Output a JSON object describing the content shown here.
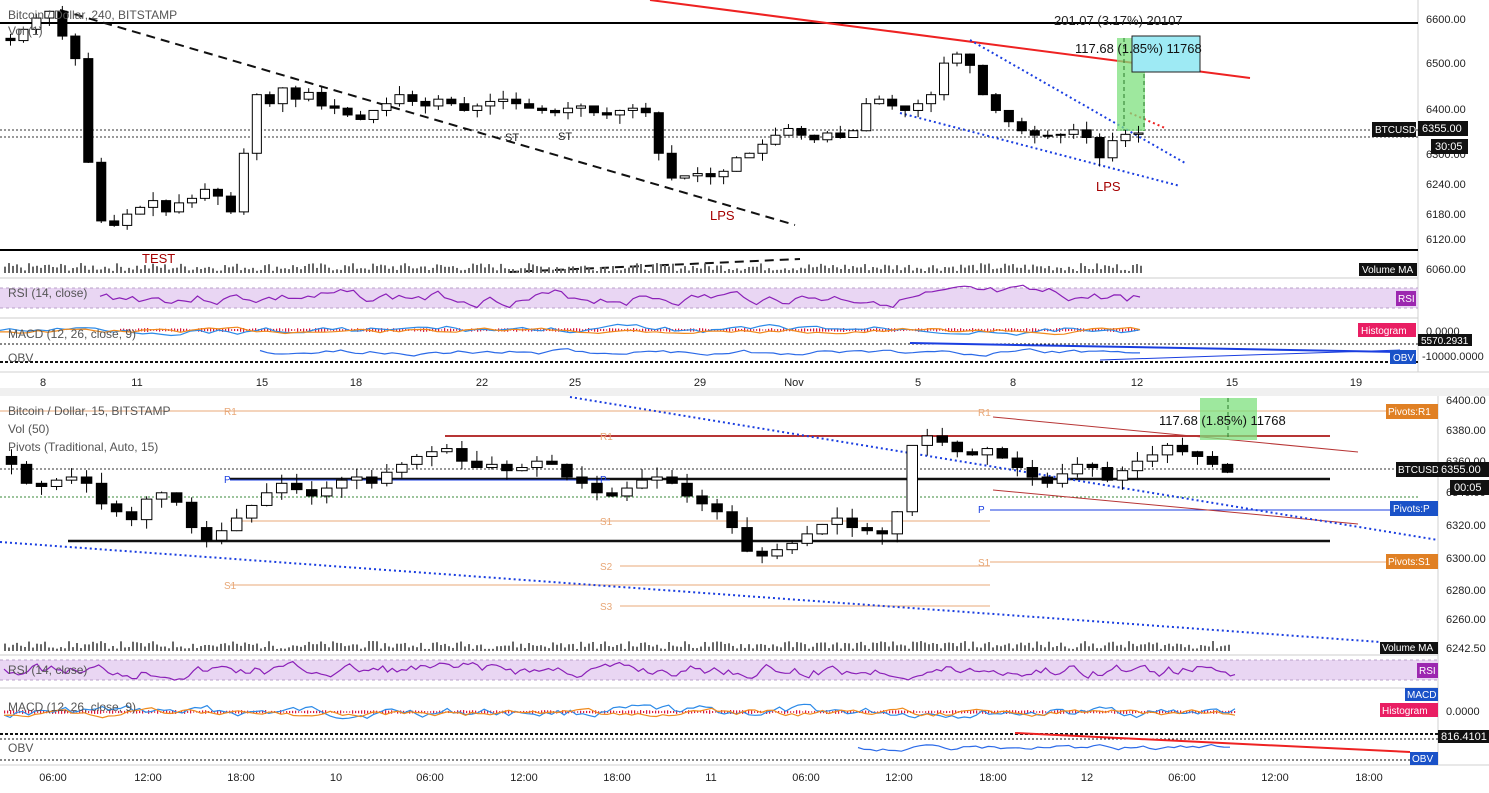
{
  "top": {
    "title": "Bitcoin / Dollar, 240, BITSTAMP",
    "vol_label": "Vol (1)",
    "volume_ma_badge": "Volume MA",
    "price_badge_symbol": "BTCUSD",
    "price_badge_value": "6355.00",
    "countdown": "30:05",
    "y_ticks": [
      "6600.00",
      "6500.00",
      "6400.00",
      "6300.00",
      "6240.00",
      "6180.00",
      "6120.00",
      "6060.00"
    ],
    "x_ticks": [
      "8",
      "11",
      "15",
      "18",
      "22",
      "25",
      "29",
      "Nov",
      "5",
      "8",
      "12",
      "15",
      "19"
    ],
    "annotations": {
      "range_label": "201.07 (3.17%) 20107",
      "measure_label": "117.68 (1.85%) 11768",
      "test": "TEST",
      "lps_1": "LPS",
      "lps_2": "LPS",
      "st_1": "ST",
      "st_2": "ST"
    },
    "rsi": {
      "label": "RSI (14, close)",
      "badge": "RSI"
    },
    "macd": {
      "label": "MACD (12, 26, close, 9)",
      "badge": "Histogram",
      "value": "0.0000"
    },
    "obv": {
      "label": "OBV",
      "badge": "OBV",
      "value": "-10000.0000",
      "value2": "5570.2931"
    }
  },
  "bottom": {
    "title": "Bitcoin / Dollar, 15, BITSTAMP",
    "vol_label": "Vol (50)",
    "pivots_label": "Pivots (Traditional, Auto, 15)",
    "volume_ma_badge": "Volume MA",
    "price_badge_symbol": "BTCUSD",
    "price_badge_value": "6355.00",
    "countdown": "00:05",
    "pivot_badges": {
      "r1": "Pivots:R1",
      "p": "Pivots:P",
      "s1": "Pivots:S1"
    },
    "pivot_levels": {
      "r1": "R1",
      "p": "P",
      "s1": "S1",
      "s2": "S2",
      "s3": "S3"
    },
    "y_ticks": [
      "6400.00",
      "6380.00",
      "6360.00",
      "6340.00",
      "6320.00",
      "6300.00",
      "6280.00",
      "6260.00",
      "6242.50"
    ],
    "x_ticks": [
      "06:00",
      "12:00",
      "18:00",
      "10",
      "06:00",
      "12:00",
      "18:00",
      "11",
      "06:00",
      "12:00",
      "18:00",
      "12",
      "06:00",
      "12:00",
      "18:00"
    ],
    "measure_label": "117.68 (1.85%) 11768",
    "rsi": {
      "label": "RSI (14, close)",
      "badge": "RSI"
    },
    "macd": {
      "label": "MACD (12, 26, close, 9)",
      "badge": "Histogram",
      "badge2": "MACD",
      "value": "0.0000"
    },
    "obv": {
      "label": "OBV",
      "badge": "OBV",
      "value": "816.4101"
    }
  },
  "colors": {
    "up_candle": "#ffffff",
    "down_candle": "#000000",
    "trendline_red": "#ee2222",
    "trendline_blue": "#1a3ee0",
    "rsi_line": "#8b20b8",
    "rsi_band": "#e9d6f3",
    "macd_blue": "#2b8ae8",
    "macd_orange": "#f08a1c",
    "histogram_red": "#d9173c",
    "pivot_orange": "#e8a878",
    "badge_pink": "#e91e63",
    "badge_blue": "#1a52c8",
    "badge_orange": "#e08024",
    "measure_green": "#7de07d",
    "measure_cyan": "#9eeaf4"
  },
  "chart_data": [
    {
      "type": "candlestick",
      "title": "Bitcoin / Dollar, 240, BITSTAMP",
      "ylim": [
        6040,
        6650
      ],
      "last_price": 6355.0,
      "closes": [
        6560,
        6585,
        6610,
        6625,
        6570,
        6520,
        6290,
        6160,
        6150,
        6175,
        6190,
        6205,
        6180,
        6200,
        6210,
        6230,
        6215,
        6180,
        6310,
        6440,
        6420,
        6455,
        6430,
        6445,
        6415,
        6410,
        6395,
        6385,
        6405,
        6420,
        6440,
        6425,
        6415,
        6430,
        6420,
        6405,
        6415,
        6425,
        6430,
        6420,
        6410,
        6405,
        6400,
        6410,
        6415,
        6400,
        6395,
        6405,
        6410,
        6400,
        6310,
        6255,
        6260,
        6265,
        6258,
        6270,
        6300,
        6310,
        6330,
        6350,
        6365,
        6350,
        6340,
        6355,
        6345,
        6360,
        6420,
        6430,
        6415,
        6405,
        6420,
        6440,
        6510,
        6530,
        6505,
        6440,
        6405,
        6380,
        6360,
        6350,
        6350,
        6352,
        6362,
        6345,
        6300,
        6338,
        6352,
        6355
      ]
    },
    {
      "type": "candlestick",
      "title": "Bitcoin / Dollar, 15, BITSTAMP",
      "ylim": [
        6242.5,
        6402
      ],
      "last_price": 6355.0,
      "pivots": {
        "R1": 6385,
        "P": 6333,
        "S1": 6300,
        "S2": 6296,
        "S3": 6281
      },
      "closes": [
        6360,
        6348,
        6346,
        6350,
        6352,
        6348,
        6335,
        6330,
        6325,
        6338,
        6342,
        6336,
        6320,
        6312,
        6318,
        6326,
        6334,
        6342,
        6348,
        6344,
        6340,
        6345,
        6350,
        6352,
        6348,
        6355,
        6360,
        6365,
        6368,
        6370,
        6362,
        6358,
        6360,
        6356,
        6358,
        6362,
        6360,
        6352,
        6348,
        6342,
        6340,
        6345,
        6350,
        6352,
        6348,
        6340,
        6335,
        6330,
        6320,
        6305,
        6302,
        6306,
        6310,
        6316,
        6322,
        6326,
        6320,
        6318,
        6316,
        6330,
        6372,
        6378,
        6374,
        6368,
        6366,
        6370,
        6364,
        6358,
        6352,
        6348,
        6354,
        6360,
        6358,
        6350,
        6356,
        6362,
        6366,
        6372,
        6368,
        6365,
        6360,
        6355
      ]
    }
  ]
}
